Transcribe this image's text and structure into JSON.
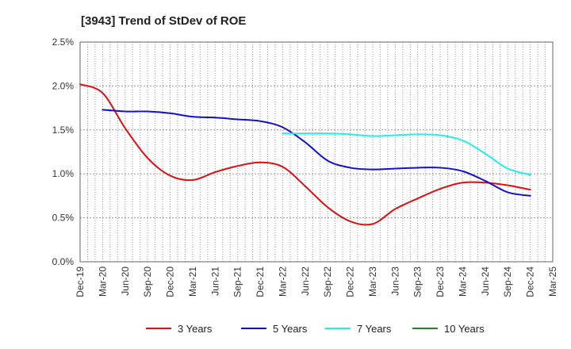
{
  "chart_data": {
    "type": "line",
    "title": "[3943]  Trend of StDev of ROE",
    "xlabel": "",
    "ylabel": "",
    "x_ticks": [
      "Dec-19",
      "Mar-20",
      "Jun-20",
      "Sep-20",
      "Dec-20",
      "Mar-21",
      "Jun-21",
      "Sep-21",
      "Dec-21",
      "Mar-22",
      "Jun-22",
      "Sep-22",
      "Dec-22",
      "Mar-23",
      "Jun-23",
      "Sep-23",
      "Dec-23",
      "Mar-24",
      "Jun-24",
      "Sep-24",
      "Dec-24",
      "Mar-25"
    ],
    "y_ticks": [
      "0.0%",
      "0.5%",
      "1.0%",
      "1.5%",
      "2.0%",
      "2.5%"
    ],
    "ylim": [
      0,
      2.5
    ],
    "grid": true,
    "legend_position": "bottom",
    "series": [
      {
        "name": "3 Years",
        "color": "#dd1111",
        "points": [
          [
            0,
            2.02
          ],
          [
            1,
            1.92
          ],
          [
            2,
            1.52
          ],
          [
            3,
            1.18
          ],
          [
            4,
            0.98
          ],
          [
            5,
            0.93
          ],
          [
            6,
            1.02
          ],
          [
            7,
            1.09
          ],
          [
            8,
            1.13
          ],
          [
            9,
            1.08
          ],
          [
            10,
            0.86
          ],
          [
            11,
            0.62
          ],
          [
            12,
            0.46
          ],
          [
            13,
            0.43
          ],
          [
            14,
            0.6
          ],
          [
            15,
            0.72
          ],
          [
            16,
            0.83
          ],
          [
            17,
            0.9
          ],
          [
            18,
            0.9
          ],
          [
            19,
            0.87
          ],
          [
            20,
            0.82
          ]
        ]
      },
      {
        "name": "5 Years",
        "color": "#1111cc",
        "points": [
          [
            1,
            1.73
          ],
          [
            2,
            1.71
          ],
          [
            3,
            1.71
          ],
          [
            4,
            1.69
          ],
          [
            5,
            1.65
          ],
          [
            6,
            1.64
          ],
          [
            7,
            1.62
          ],
          [
            8,
            1.6
          ],
          [
            9,
            1.53
          ],
          [
            10,
            1.36
          ],
          [
            11,
            1.15
          ],
          [
            12,
            1.07
          ],
          [
            13,
            1.05
          ],
          [
            14,
            1.06
          ],
          [
            15,
            1.07
          ],
          [
            16,
            1.07
          ],
          [
            17,
            1.03
          ],
          [
            18,
            0.92
          ],
          [
            19,
            0.79
          ],
          [
            20,
            0.75
          ]
        ]
      },
      {
        "name": "7 Years",
        "color": "#22eeee",
        "points": [
          [
            9,
            1.46
          ],
          [
            10,
            1.46
          ],
          [
            11,
            1.46
          ],
          [
            12,
            1.45
          ],
          [
            13,
            1.43
          ],
          [
            14,
            1.44
          ],
          [
            15,
            1.45
          ],
          [
            16,
            1.44
          ],
          [
            17,
            1.38
          ],
          [
            18,
            1.23
          ],
          [
            19,
            1.06
          ],
          [
            20,
            0.99
          ]
        ]
      },
      {
        "name": "10 Years",
        "color": "#228822",
        "points": []
      }
    ]
  }
}
